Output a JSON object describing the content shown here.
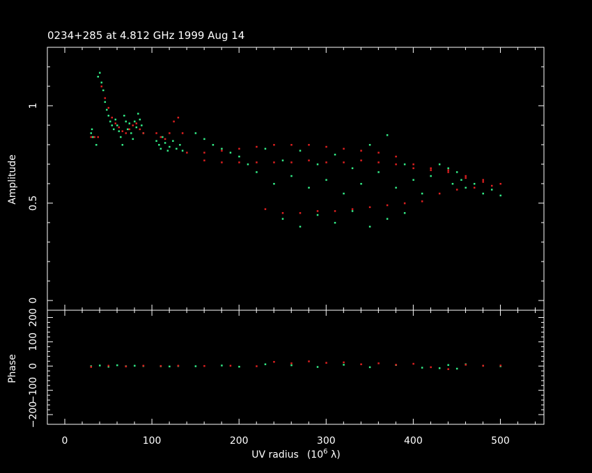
{
  "chart_data": [
    {
      "type": "scatter",
      "panel": "amplitude",
      "title": "0234+285 at 4.812 GHz 1999 Aug 14",
      "ylabel": "Amplitude",
      "xlim": [
        -20,
        550
      ],
      "ylim": [
        -0.05,
        1.3
      ],
      "y_ticks": [
        "0",
        "0.5",
        "1"
      ],
      "series": [
        {
          "color": "#33ee88",
          "points": [
            [
              30,
              0.86
            ],
            [
              31,
              0.88
            ],
            [
              32,
              0.84
            ],
            [
              36,
              0.8
            ],
            [
              38,
              1.15
            ],
            [
              40,
              1.17
            ],
            [
              42,
              1.12
            ],
            [
              44,
              1.08
            ],
            [
              46,
              1.02
            ],
            [
              48,
              0.98
            ],
            [
              50,
              0.95
            ],
            [
              52,
              0.92
            ],
            [
              54,
              0.9
            ],
            [
              56,
              0.88
            ],
            [
              58,
              0.93
            ],
            [
              60,
              0.9
            ],
            [
              62,
              0.87
            ],
            [
              64,
              0.84
            ],
            [
              66,
              0.8
            ],
            [
              68,
              0.95
            ],
            [
              70,
              0.92
            ],
            [
              72,
              0.88
            ],
            [
              74,
              0.91
            ],
            [
              76,
              0.86
            ],
            [
              78,
              0.83
            ],
            [
              80,
              0.92
            ],
            [
              82,
              0.89
            ],
            [
              84,
              0.96
            ],
            [
              86,
              0.93
            ],
            [
              88,
              0.9
            ],
            [
              90,
              0.86
            ],
            [
              105,
              0.82
            ],
            [
              108,
              0.8
            ],
            [
              110,
              0.78
            ],
            [
              112,
              0.84
            ],
            [
              115,
              0.81
            ],
            [
              118,
              0.77
            ],
            [
              120,
              0.79
            ],
            [
              124,
              0.82
            ],
            [
              128,
              0.78
            ],
            [
              132,
              0.8
            ],
            [
              135,
              0.77
            ],
            [
              150,
              0.86
            ],
            [
              160,
              0.83
            ],
            [
              170,
              0.8
            ],
            [
              180,
              0.78
            ],
            [
              190,
              0.76
            ],
            [
              200,
              0.74
            ],
            [
              210,
              0.7
            ],
            [
              220,
              0.66
            ],
            [
              230,
              0.78
            ],
            [
              240,
              0.6
            ],
            [
              250,
              0.72
            ],
            [
              260,
              0.64
            ],
            [
              270,
              0.77
            ],
            [
              280,
              0.58
            ],
            [
              290,
              0.7
            ],
            [
              300,
              0.62
            ],
            [
              310,
              0.75
            ],
            [
              320,
              0.55
            ],
            [
              330,
              0.68
            ],
            [
              340,
              0.6
            ],
            [
              350,
              0.8
            ],
            [
              360,
              0.66
            ],
            [
              370,
              0.85
            ],
            [
              380,
              0.58
            ],
            [
              390,
              0.7
            ],
            [
              400,
              0.62
            ],
            [
              410,
              0.55
            ],
            [
              420,
              0.64
            ],
            [
              430,
              0.7
            ],
            [
              440,
              0.68
            ],
            [
              445,
              0.6
            ],
            [
              450,
              0.66
            ],
            [
              455,
              0.62
            ],
            [
              460,
              0.58
            ],
            [
              470,
              0.6
            ],
            [
              480,
              0.55
            ],
            [
              490,
              0.57
            ],
            [
              500,
              0.54
            ],
            [
              250,
              0.42
            ],
            [
              270,
              0.38
            ],
            [
              290,
              0.44
            ],
            [
              310,
              0.4
            ],
            [
              330,
              0.46
            ],
            [
              350,
              0.38
            ],
            [
              370,
              0.42
            ],
            [
              390,
              0.45
            ]
          ]
        },
        {
          "color": "#e02020",
          "points": [
            [
              30,
              0.84
            ],
            [
              34,
              0.84
            ],
            [
              38,
              0.84
            ],
            [
              42,
              1.1
            ],
            [
              46,
              1.04
            ],
            [
              50,
              0.99
            ],
            [
              54,
              0.94
            ],
            [
              58,
              0.91
            ],
            [
              62,
              0.89
            ],
            [
              66,
              0.87
            ],
            [
              70,
              0.86
            ],
            [
              74,
              0.88
            ],
            [
              78,
              0.9
            ],
            [
              82,
              0.91
            ],
            [
              86,
              0.88
            ],
            [
              90,
              0.86
            ],
            [
              105,
              0.86
            ],
            [
              110,
              0.84
            ],
            [
              115,
              0.83
            ],
            [
              120,
              0.86
            ],
            [
              125,
              0.92
            ],
            [
              130,
              0.94
            ],
            [
              135,
              0.86
            ],
            [
              140,
              0.76
            ],
            [
              160,
              0.76
            ],
            [
              180,
              0.77
            ],
            [
              200,
              0.78
            ],
            [
              220,
              0.79
            ],
            [
              240,
              0.8
            ],
            [
              260,
              0.8
            ],
            [
              280,
              0.8
            ],
            [
              300,
              0.79
            ],
            [
              320,
              0.78
            ],
            [
              340,
              0.77
            ],
            [
              360,
              0.76
            ],
            [
              380,
              0.74
            ],
            [
              400,
              0.7
            ],
            [
              420,
              0.68
            ],
            [
              440,
              0.66
            ],
            [
              460,
              0.63
            ],
            [
              480,
              0.61
            ],
            [
              500,
              0.6
            ],
            [
              160,
              0.72
            ],
            [
              180,
              0.71
            ],
            [
              200,
              0.71
            ],
            [
              220,
              0.71
            ],
            [
              240,
              0.71
            ],
            [
              260,
              0.71
            ],
            [
              280,
              0.72
            ],
            [
              300,
              0.71
            ],
            [
              320,
              0.71
            ],
            [
              340,
              0.72
            ],
            [
              360,
              0.71
            ],
            [
              380,
              0.7
            ],
            [
              400,
              0.68
            ],
            [
              420,
              0.67
            ],
            [
              440,
              0.67
            ],
            [
              460,
              0.64
            ],
            [
              480,
              0.62
            ],
            [
              230,
              0.47
            ],
            [
              250,
              0.45
            ],
            [
              270,
              0.45
            ],
            [
              290,
              0.46
            ],
            [
              310,
              0.46
            ],
            [
              330,
              0.47
            ],
            [
              350,
              0.48
            ],
            [
              370,
              0.49
            ],
            [
              390,
              0.5
            ],
            [
              410,
              0.51
            ],
            [
              430,
              0.55
            ],
            [
              450,
              0.57
            ],
            [
              470,
              0.58
            ],
            [
              490,
              0.59
            ]
          ]
        }
      ]
    },
    {
      "type": "scatter",
      "panel": "phase",
      "ylabel": "Phase",
      "xlabel_main": "UV radius",
      "xlabel_unit_prefix": "(10",
      "xlabel_unit_exp": "6",
      "xlabel_unit_suffix": " λ)",
      "xlim": [
        -20,
        550
      ],
      "ylim": [
        -240,
        230
      ],
      "x_ticks": [
        "0",
        "100",
        "200",
        "300",
        "400",
        "500"
      ],
      "y_ticks": [
        "−200",
        "−100",
        "0",
        "100",
        "200"
      ],
      "series": [
        {
          "color": "#33ee88",
          "points": [
            [
              30,
              0
            ],
            [
              40,
              3
            ],
            [
              50,
              -2
            ],
            [
              60,
              4
            ],
            [
              70,
              0
            ],
            [
              80,
              2
            ],
            [
              90,
              1
            ],
            [
              110,
              0
            ],
            [
              120,
              -1
            ],
            [
              130,
              1
            ],
            [
              150,
              0
            ],
            [
              180,
              3
            ],
            [
              200,
              -2
            ],
            [
              230,
              8
            ],
            [
              260,
              4
            ],
            [
              290,
              -3
            ],
            [
              320,
              6
            ],
            [
              350,
              -4
            ],
            [
              380,
              5
            ],
            [
              410,
              -6
            ],
            [
              430,
              -8
            ],
            [
              440,
              5
            ],
            [
              450,
              -10
            ],
            [
              460,
              8
            ],
            [
              480,
              2
            ],
            [
              500,
              0
            ]
          ]
        },
        {
          "color": "#e02020",
          "points": [
            [
              30,
              -3
            ],
            [
              50,
              2
            ],
            [
              70,
              -1
            ],
            [
              90,
              2
            ],
            [
              110,
              1
            ],
            [
              130,
              2
            ],
            [
              160,
              1
            ],
            [
              190,
              2
            ],
            [
              220,
              0
            ],
            [
              240,
              18
            ],
            [
              260,
              12
            ],
            [
              280,
              20
            ],
            [
              300,
              14
            ],
            [
              320,
              16
            ],
            [
              340,
              8
            ],
            [
              360,
              12
            ],
            [
              380,
              6
            ],
            [
              400,
              10
            ],
            [
              420,
              -4
            ],
            [
              440,
              -12
            ],
            [
              460,
              6
            ],
            [
              480,
              2
            ],
            [
              500,
              3
            ]
          ]
        }
      ]
    }
  ]
}
